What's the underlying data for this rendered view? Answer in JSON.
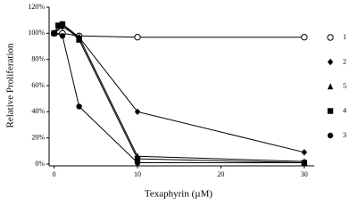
{
  "chart_data": {
    "type": "line",
    "x_label": "Texaphyrin (µM)",
    "y_label": "Relative Proliferation",
    "xlim": [
      -0.6,
      31.2
    ],
    "xticks": [
      0,
      10,
      20,
      30
    ],
    "ylim": [
      0,
      120
    ],
    "yticks": [
      {
        "value": 0,
        "label": "0%"
      },
      {
        "value": 20,
        "label": "20%"
      },
      {
        "value": 40,
        "label": "40%"
      },
      {
        "value": 60,
        "label": "60%"
      },
      {
        "value": 80,
        "label": "80%"
      },
      {
        "value": 100,
        "label": "100%"
      },
      {
        "value": 120,
        "label": "120%"
      }
    ],
    "legend": "right",
    "series": [
      {
        "name": "1",
        "marker": "open-circle",
        "color": "#000000",
        "x": [
          0,
          1,
          3,
          10,
          30
        ],
        "values": [
          100,
          100,
          98,
          97,
          97
        ]
      },
      {
        "name": "2",
        "marker": "diamond",
        "color": "#000000",
        "x": [
          0,
          1,
          3,
          10,
          30
        ],
        "values": [
          100,
          105,
          97,
          40,
          9
        ]
      },
      {
        "name": "5",
        "marker": "triangle",
        "color": "#000000",
        "x": [
          0,
          1,
          3,
          10,
          30
        ],
        "values": [
          100,
          107,
          97,
          6,
          2
        ]
      },
      {
        "name": "4",
        "marker": "square",
        "color": "#000000",
        "x": [
          0,
          0.5,
          1,
          3,
          10,
          30
        ],
        "values": [
          100,
          106,
          107,
          95,
          4,
          1
        ]
      },
      {
        "name": "3",
        "marker": "circle",
        "color": "#000000",
        "x": [
          0,
          1,
          3,
          10,
          30
        ],
        "values": [
          100,
          98,
          44,
          1,
          1
        ]
      }
    ]
  }
}
